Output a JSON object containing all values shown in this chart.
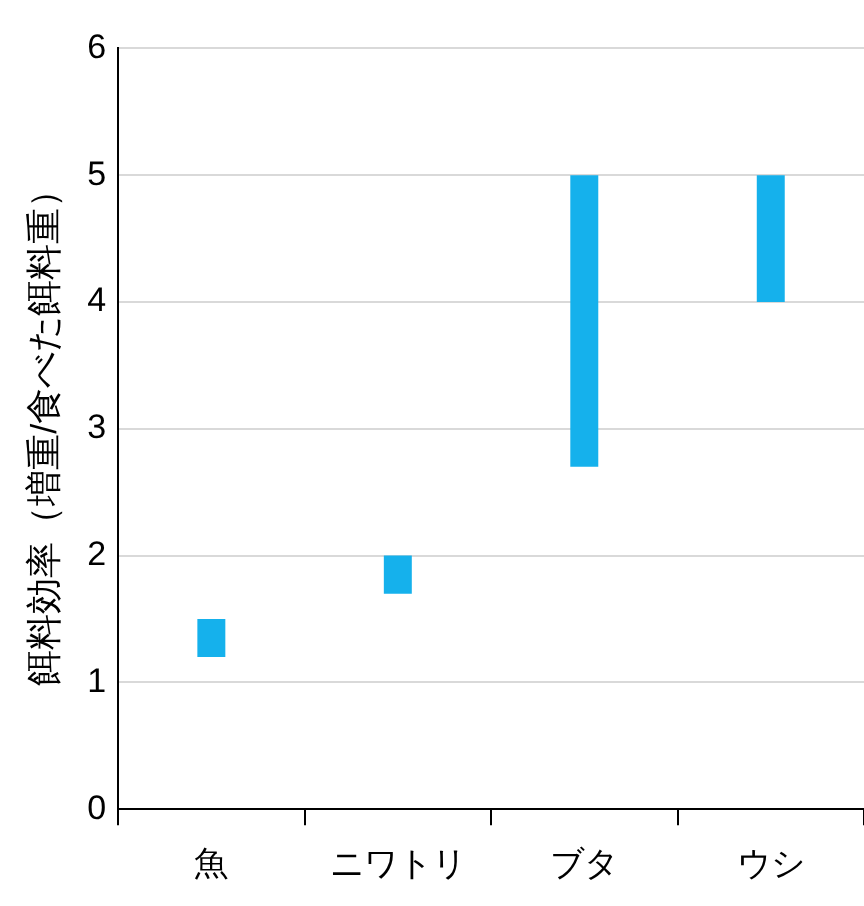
{
  "chart_data": {
    "type": "bar",
    "ylabel": "餌料効率（増重/食べた餌料重）",
    "categories": [
      "魚",
      "ニワトリ",
      "ブタ",
      "ウシ"
    ],
    "base": [
      1.2,
      1.7,
      2.7,
      4.0
    ],
    "values": [
      0.3,
      0.3,
      2.3,
      1.0
    ],
    "color": "#15b1ec",
    "ylim": [
      0,
      6
    ],
    "yticks": [
      0,
      1,
      2,
      3,
      4,
      5,
      6
    ],
    "grid": "y",
    "legend": false
  }
}
